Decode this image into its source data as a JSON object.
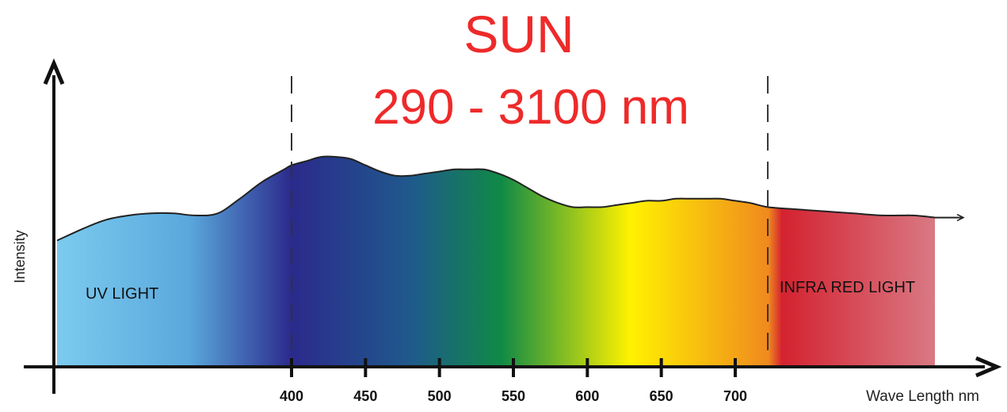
{
  "chart_data": {
    "type": "area",
    "title": "SUN",
    "subtitle": "290 - 3100 nm",
    "xlabel": "Wave Length nm",
    "ylabel": "Intensity",
    "x_ticks": [
      400,
      450,
      500,
      550,
      600,
      650,
      700
    ],
    "regions": [
      {
        "label": "UV LIGHT"
      },
      {
        "label": "INFRA RED LIGHT"
      }
    ],
    "curve": {
      "x": [
        245,
        260,
        275,
        290,
        305,
        320,
        335,
        350,
        365,
        380,
        395,
        400,
        410,
        420,
        430,
        440,
        450,
        460,
        470,
        480,
        490,
        500,
        510,
        520,
        530,
        540,
        550,
        560,
        570,
        580,
        590,
        600,
        610,
        620,
        630,
        640,
        650,
        660,
        670,
        680,
        690,
        700,
        710,
        722,
        740,
        760,
        780,
        800,
        820,
        835
      ],
      "y": [
        0.6,
        0.66,
        0.7,
        0.72,
        0.73,
        0.73,
        0.72,
        0.73,
        0.8,
        0.88,
        0.94,
        0.96,
        0.98,
        1.0,
        1.0,
        0.99,
        0.96,
        0.93,
        0.91,
        0.91,
        0.92,
        0.93,
        0.94,
        0.94,
        0.94,
        0.92,
        0.89,
        0.85,
        0.81,
        0.78,
        0.76,
        0.76,
        0.76,
        0.77,
        0.78,
        0.79,
        0.79,
        0.8,
        0.8,
        0.8,
        0.8,
        0.79,
        0.78,
        0.76,
        0.75,
        0.74,
        0.73,
        0.72,
        0.72,
        0.71
      ],
      "ylim": [
        0,
        1.15
      ]
    },
    "dashed_lines_x": [
      400,
      722
    ],
    "colors": {
      "title": "#ee2a2a",
      "uv_start": "#7ccbef",
      "violet": "#2b2a8c",
      "blue": "#1f5a8c",
      "green": "#0f8a45",
      "yellow": "#fff200",
      "orange": "#f08a1e",
      "red": "#d42230",
      "ir_end": "#d9808a"
    }
  }
}
